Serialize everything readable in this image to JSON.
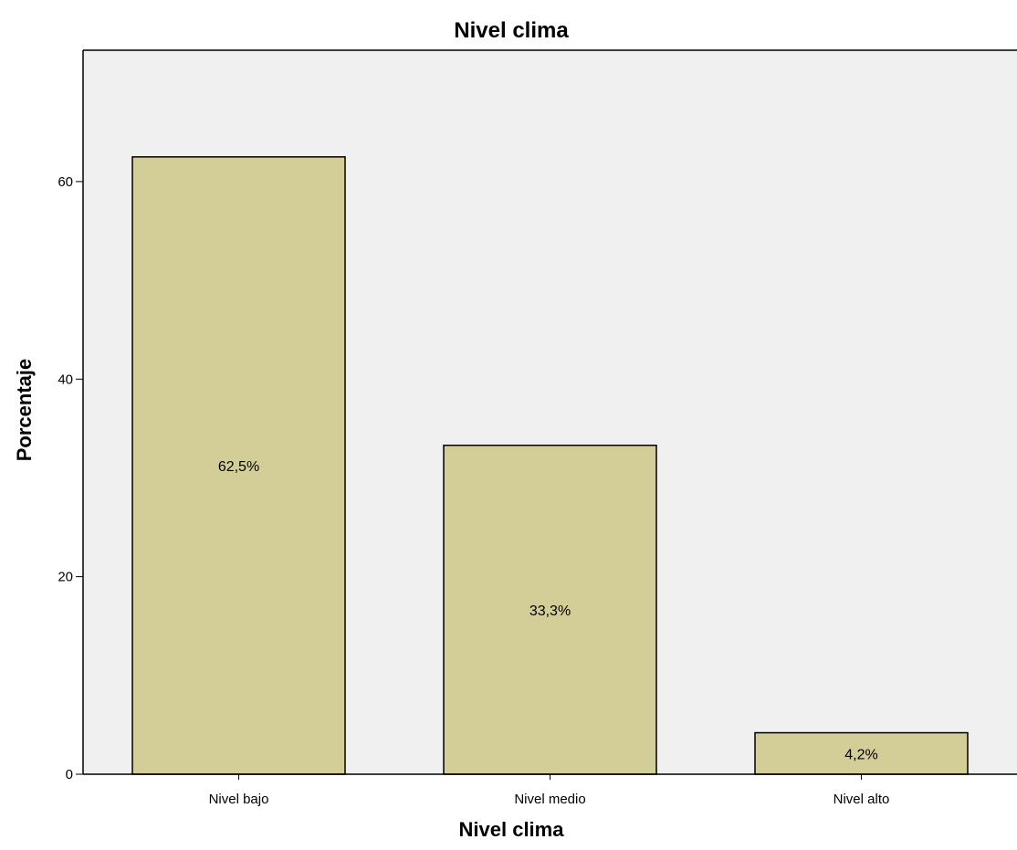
{
  "chart_data": {
    "type": "bar",
    "title": "Nivel clima",
    "xlabel": "Nivel clima",
    "ylabel": "Porcentaje",
    "categories": [
      "Nivel bajo",
      "Nivel medio",
      "Nivel alto"
    ],
    "values": [
      62.5,
      33.3,
      4.2
    ],
    "data_labels": [
      "62,5%",
      "33,3%",
      "4,2%"
    ],
    "yticks": [
      0,
      20,
      40,
      60
    ],
    "ytick_labels": [
      "0",
      "20",
      "40",
      "60"
    ],
    "ylim": [
      0,
      73.3
    ],
    "grid": false,
    "legend": "none",
    "colors": {
      "bar_fill": "#d3ce97",
      "bar_stroke": "#000000",
      "plot_background": "#f0f0f0"
    }
  }
}
